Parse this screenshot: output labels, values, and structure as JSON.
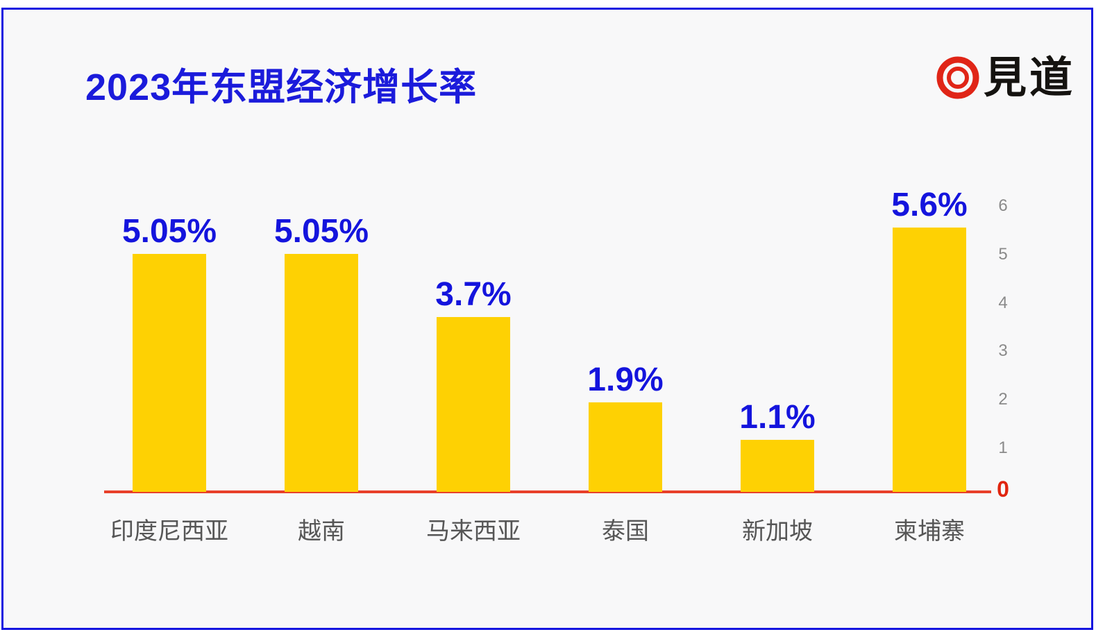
{
  "header": {
    "title": "2023年东盟经济增长率",
    "brand": "見道",
    "title_color": "#1b1bdb",
    "logo_ring_color": "#e02517"
  },
  "chart_data": {
    "type": "bar",
    "title": "2023年东盟经济增长率",
    "categories": [
      "印度尼西亚",
      "越南",
      "马来西亚",
      "泰国",
      "新加坡",
      "柬埔寨"
    ],
    "category_ids": [
      "indonesia",
      "vietnam",
      "malaysia",
      "thailand",
      "singapore",
      "cambodia"
    ],
    "values": [
      5.05,
      5.05,
      3.7,
      1.9,
      1.1,
      5.6
    ],
    "value_labels": [
      "5.05%",
      "5.05%",
      "3.7%",
      "1.9%",
      "1.1%",
      "5.6%"
    ],
    "xlabel": "",
    "ylabel": "",
    "ylim": [
      0,
      6
    ],
    "yticks": [
      0,
      1,
      2,
      3,
      4,
      5,
      6
    ],
    "yaxis_side": "right",
    "grid": false,
    "legend": null,
    "bar_color": "#fed103",
    "value_label_color": "#1414dd",
    "category_label_color": "#565656",
    "tick_color": "#8a8a8a",
    "zero_tick_color": "#e0250f",
    "axis_line_color": "#e8402a"
  }
}
